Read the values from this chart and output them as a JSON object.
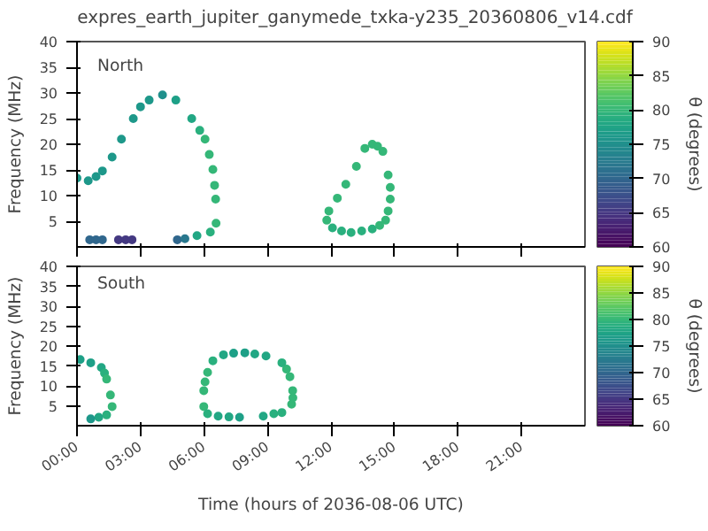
{
  "chart_data": [
    {
      "type": "scatter",
      "title": "expres_earth_jupiter_ganymede_txka-y235_20360806_v14.cdf",
      "ylabel": "Frequency (MHz)",
      "annotations": [
        "North"
      ],
      "xlim": [
        0,
        24
      ],
      "xticks": [
        {
          "value": 0,
          "label": null
        },
        {
          "value": 3,
          "label": null
        },
        {
          "value": 6,
          "label": null
        },
        {
          "value": 9,
          "label": null
        },
        {
          "value": 12,
          "label": null
        },
        {
          "value": 15,
          "label": null
        },
        {
          "value": 18,
          "label": null
        },
        {
          "value": 21,
          "label": null
        }
      ],
      "ylim": [
        0,
        40
      ],
      "yticks": [
        5,
        10,
        15,
        20,
        25,
        30,
        35,
        40
      ],
      "tick_labels": "y",
      "clim": [
        60,
        90
      ],
      "cticks": [
        60,
        65,
        70,
        75,
        80,
        85,
        90
      ],
      "clabel": "θ (degrees)",
      "marker": "circle",
      "x": [
        0,
        0.53,
        0.9,
        1.2,
        1.66,
        2.1,
        2.66,
        3.0,
        3.41,
        4.04,
        4.67,
        5.42,
        5.8,
        6.05,
        6.25,
        6.42,
        6.5,
        6.55,
        6.57,
        6.3,
        5.67,
        0.6,
        0.9,
        1.2,
        1.96,
        2.3,
        2.6,
        4.74,
        5.1,
        11.8,
        11.9,
        12.3,
        12.7,
        13.2,
        13.6,
        13.95,
        14.2,
        14.45,
        14.7,
        14.8,
        14.8,
        14.7,
        14.58,
        14.3,
        13.95,
        13.45,
        12.95,
        12.5,
        12.07
      ],
      "values": [
        13.4,
        12.9,
        13.7,
        14.8,
        17.5,
        21,
        25,
        27.3,
        28.6,
        29.6,
        28.6,
        25,
        22.7,
        21,
        18,
        15.1,
        12,
        9.3,
        4.6,
        2.9,
        2.2,
        1.4,
        1.4,
        1.4,
        1.4,
        1.4,
        1.4,
        1.4,
        1.6,
        5.2,
        7,
        9.5,
        12.2,
        15.7,
        19.2,
        20,
        19.6,
        18.6,
        14,
        11.6,
        9.3,
        7,
        5.2,
        4.2,
        3.5,
        3.1,
        2.8,
        3.1,
        3.7
      ],
      "cvalues": [
        76,
        76,
        76,
        76,
        76,
        76,
        76,
        76,
        76,
        75,
        77,
        78,
        79,
        80,
        80,
        80,
        80,
        80,
        80,
        79,
        78,
        70,
        70,
        70,
        65,
        65,
        65,
        70,
        72,
        80,
        80,
        80,
        80,
        80,
        80,
        80,
        80,
        80,
        80,
        80,
        80,
        80,
        80,
        80,
        79,
        79,
        79,
        79,
        79
      ]
    },
    {
      "type": "scatter",
      "xlabel": "Time (hours of 2036-08-06 UTC)",
      "ylabel": "Frequency (MHz)",
      "annotations": [
        "South"
      ],
      "xlim": [
        0,
        24
      ],
      "xticks": [
        {
          "value": 0,
          "label": "00:00"
        },
        {
          "value": 3,
          "label": "03:00"
        },
        {
          "value": 6,
          "label": "06:00"
        },
        {
          "value": 9,
          "label": "09:00"
        },
        {
          "value": 12,
          "label": "12:00"
        },
        {
          "value": 15,
          "label": "15:00"
        },
        {
          "value": 18,
          "label": "18:00"
        },
        {
          "value": 21,
          "label": "21:00"
        }
      ],
      "ylim": [
        0,
        40
      ],
      "yticks": [
        5,
        10,
        15,
        20,
        25,
        30,
        35,
        40
      ],
      "clim": [
        60,
        90
      ],
      "cticks": [
        60,
        65,
        70,
        75,
        80,
        85,
        90
      ],
      "clabel": "θ (degrees)",
      "marker": "circle",
      "x": [
        0.15,
        0.65,
        1.15,
        1.3,
        1.4,
        1.58,
        1.66,
        1.4,
        1.03,
        0.65,
        5.99,
        5.99,
        6.17,
        6.67,
        7.18,
        7.68,
        8.8,
        9.3,
        9.68,
        10.14,
        10.2,
        10.19,
        10.06,
        9.9,
        9.68,
        8.93,
        8.4,
        7.93,
        7.4,
        6.92,
        6.42,
        6.17,
        6.05
      ],
      "values": [
        16.6,
        15.8,
        14.6,
        13.2,
        11.7,
        7.7,
        4.8,
        2.7,
        2.1,
        1.7,
        8.8,
        4.8,
        3.0,
        2.4,
        2.2,
        2.1,
        2.4,
        3.0,
        3.3,
        5.4,
        7,
        8.8,
        12.3,
        14.2,
        15.8,
        17.5,
        18,
        18.3,
        18.2,
        17.8,
        16.3,
        13.4,
        11
      ],
      "cvalues": [
        77,
        77,
        78,
        79,
        80,
        80,
        80,
        79,
        78,
        76,
        80,
        80,
        79,
        78,
        78,
        77,
        78,
        79,
        79,
        80,
        80,
        80,
        80,
        80,
        79,
        78,
        78,
        77,
        77,
        78,
        79,
        80,
        80
      ]
    }
  ]
}
